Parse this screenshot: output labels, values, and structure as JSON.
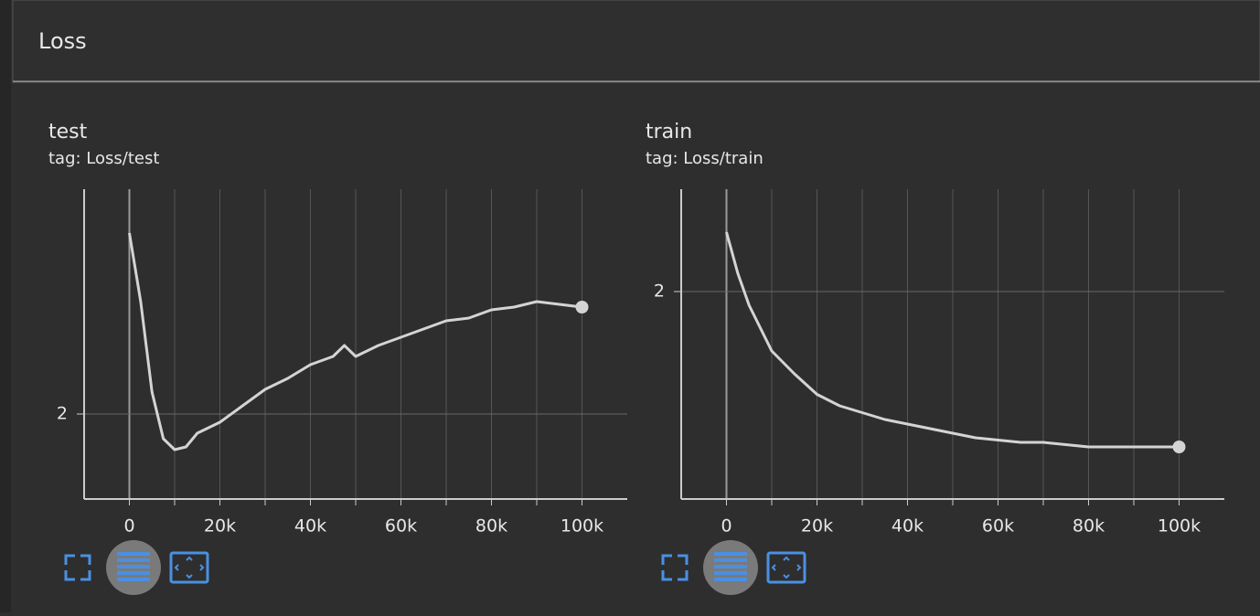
{
  "section_title": "Loss",
  "chart_data": [
    {
      "type": "line",
      "title": "test",
      "subtitle": "tag: Loss/test",
      "color": "#d4d4d4",
      "x": [
        0,
        2500,
        5000,
        7500,
        10000,
        12500,
        15000,
        20000,
        25000,
        30000,
        35000,
        40000,
        45000,
        47500,
        50000,
        55000,
        60000,
        65000,
        70000,
        75000,
        80000,
        85000,
        90000,
        95000,
        100000
      ],
      "values": [
        2.66,
        2.41,
        2.08,
        1.91,
        1.87,
        1.88,
        1.93,
        1.97,
        2.03,
        2.09,
        2.13,
        2.18,
        2.21,
        2.25,
        2.21,
        2.25,
        2.28,
        2.31,
        2.34,
        2.35,
        2.38,
        2.39,
        2.41,
        2.4,
        2.39
      ],
      "xlim": [
        -10000,
        110000
      ],
      "xticks": [
        0,
        {
          "value": 20000,
          "label": "20k"
        },
        {
          "value": 40000,
          "label": "40k"
        },
        {
          "value": 60000,
          "label": "60k"
        },
        {
          "value": 80000,
          "label": "80k"
        },
        {
          "value": 100000,
          "label": "100k"
        }
      ],
      "ylim": [
        1.69,
        2.82
      ],
      "yticks": [
        2
      ],
      "grid": true
    },
    {
      "type": "line",
      "title": "train",
      "subtitle": "tag: Loss/train",
      "color": "#d4d4d4",
      "x": [
        0,
        2500,
        5000,
        7500,
        10000,
        15000,
        20000,
        25000,
        30000,
        35000,
        40000,
        45000,
        50000,
        55000,
        60000,
        65000,
        70000,
        75000,
        80000,
        85000,
        90000,
        95000,
        100000
      ],
      "values": [
        2.26,
        2.08,
        1.94,
        1.84,
        1.74,
        1.64,
        1.55,
        1.5,
        1.47,
        1.44,
        1.42,
        1.4,
        1.38,
        1.36,
        1.35,
        1.34,
        1.34,
        1.33,
        1.32,
        1.32,
        1.32,
        1.32,
        1.32
      ],
      "xlim": [
        -10000,
        110000
      ],
      "xticks": [
        0,
        {
          "value": 20000,
          "label": "20k"
        },
        {
          "value": 40000,
          "label": "40k"
        },
        {
          "value": 60000,
          "label": "60k"
        },
        {
          "value": 80000,
          "label": "80k"
        },
        {
          "value": 100000,
          "label": "100k"
        }
      ],
      "ylim": [
        1.092,
        2.448
      ],
      "yticks": [
        2
      ],
      "grid": true
    }
  ]
}
